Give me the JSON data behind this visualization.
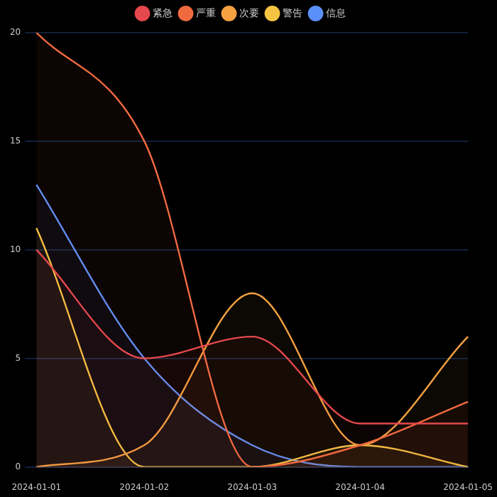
{
  "chart_data": {
    "type": "area",
    "categories": [
      "2024-01-01",
      "2024-01-02",
      "2024-01-03",
      "2024-01-04",
      "2024-01-05"
    ],
    "series": [
      {
        "name": "紧急",
        "color": "#e5484d",
        "values": [
          10,
          5,
          6,
          2,
          2
        ]
      },
      {
        "name": "严重",
        "color": "#f06a40",
        "values": [
          20,
          15,
          0,
          1,
          3
        ]
      },
      {
        "name": "次要",
        "color": "#f5a142",
        "values": [
          0,
          1,
          8,
          1,
          6
        ]
      },
      {
        "name": "警告",
        "color": "#f5c542",
        "values": [
          11,
          0,
          0,
          1,
          0
        ]
      },
      {
        "name": "信息",
        "color": "#5b8ff9",
        "values": [
          13,
          5,
          1,
          0,
          0
        ]
      }
    ],
    "ylim": [
      0,
      20
    ],
    "yticks": [
      0,
      5,
      10,
      15,
      20
    ],
    "grid": "y",
    "legend": "top",
    "marker": "none"
  }
}
